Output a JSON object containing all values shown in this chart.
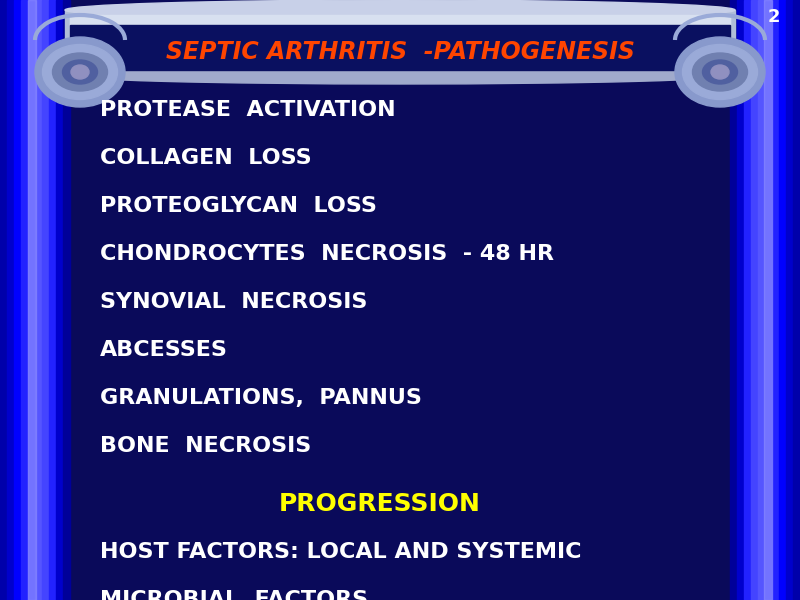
{
  "title": "SEPTIC ARTHRITIS  -PATHOGENESIS",
  "title_color": "#FF4500",
  "bullet_items": [
    "PROTEASE  ACTIVATION",
    "COLLAGEN  LOSS",
    "PROTEOGLYCAN  LOSS",
    "CHONDROCYTES  NECROSIS  - 48 HR",
    "SYNOVIAL  NECROSIS",
    "ABCESSES",
    "GRANULATIONS,  PANNUS",
    "BONE  NECROSIS"
  ],
  "bullet_color": "#FFFFFF",
  "progression_text": "PROGRESSION",
  "progression_color": "#FFFF00",
  "footer_items": [
    "HOST FACTORS: LOCAL AND SYSTEMIC",
    "MICROBIAL  FACTORS"
  ],
  "footer_color": "#FFFFFF",
  "bg_color": "#0A0A5A",
  "slide_number": "2",
  "slide_number_color": "#FFFFFF",
  "title_fontsize": 17,
  "bullet_fontsize": 16,
  "progression_fontsize": 18,
  "footer_fontsize": 16,
  "figsize": [
    8.0,
    6.0
  ]
}
